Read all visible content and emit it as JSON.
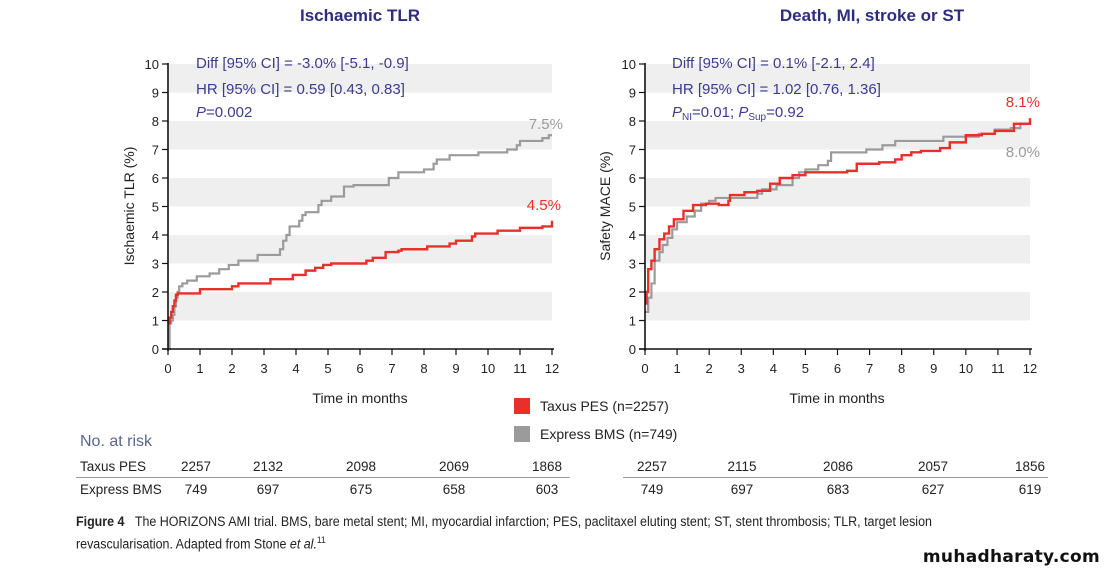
{
  "chart_data": [
    {
      "type": "line",
      "step": true,
      "title": "Ischaemic TLR",
      "xlabel": "Time in months",
      "ylabel": "Ischaemic TLR (%)",
      "xlim": [
        0,
        12
      ],
      "ylim": [
        0,
        10
      ],
      "xticks": [
        "0",
        "1",
        "2",
        "3",
        "4",
        "5",
        "6",
        "7",
        "8",
        "9",
        "10",
        "11",
        "12"
      ],
      "yticks": [
        "0",
        "1",
        "2",
        "3",
        "4",
        "5",
        "6",
        "7",
        "8",
        "9",
        "10"
      ],
      "grid": "alternating horizontal bands",
      "annotations": {
        "line1": "Diff [95% CI] = -3.0% [-5.1, -0.9]",
        "line2": "HR [95% CI] = 0.59 [0.43, 0.83]",
        "p_label": "P",
        "p_value": "=0.002"
      },
      "end_labels": {
        "gray": "7.5%",
        "red": "4.5%"
      },
      "series": [
        {
          "name": "Taxus PES (n=2257)",
          "color": "#e8302a",
          "points": [
            [
              0,
              0.9
            ],
            [
              0.05,
              1.1
            ],
            [
              0.1,
              1.3
            ],
            [
              0.15,
              1.5
            ],
            [
              0.2,
              1.7
            ],
            [
              0.25,
              1.9
            ],
            [
              0.3,
              1.95
            ],
            [
              1.0,
              2.1
            ],
            [
              2.0,
              2.2
            ],
            [
              2.2,
              2.3
            ],
            [
              3.2,
              2.45
            ],
            [
              3.9,
              2.6
            ],
            [
              4.3,
              2.75
            ],
            [
              4.6,
              2.85
            ],
            [
              4.85,
              2.95
            ],
            [
              5.1,
              3.0
            ],
            [
              6.2,
              3.1
            ],
            [
              6.4,
              3.2
            ],
            [
              6.8,
              3.4
            ],
            [
              7.2,
              3.45
            ],
            [
              7.3,
              3.5
            ],
            [
              8.1,
              3.6
            ],
            [
              8.8,
              3.7
            ],
            [
              9.0,
              3.8
            ],
            [
              9.5,
              3.95
            ],
            [
              9.6,
              4.05
            ],
            [
              10.3,
              4.15
            ],
            [
              11.0,
              4.25
            ],
            [
              11.7,
              4.3
            ],
            [
              12.0,
              4.5
            ]
          ]
        },
        {
          "name": "Express BMS (n=749)",
          "color": "#9b9b9b",
          "points": [
            [
              0,
              0
            ],
            [
              0.05,
              0.9
            ],
            [
              0.1,
              1.0
            ],
            [
              0.15,
              1.2
            ],
            [
              0.2,
              1.5
            ],
            [
              0.25,
              1.8
            ],
            [
              0.3,
              2.0
            ],
            [
              0.35,
              2.2
            ],
            [
              0.45,
              2.3
            ],
            [
              0.6,
              2.4
            ],
            [
              0.9,
              2.55
            ],
            [
              1.3,
              2.65
            ],
            [
              1.6,
              2.8
            ],
            [
              1.9,
              2.95
            ],
            [
              2.2,
              3.1
            ],
            [
              2.8,
              3.3
            ],
            [
              3.5,
              3.5
            ],
            [
              3.6,
              3.8
            ],
            [
              3.7,
              4.0
            ],
            [
              3.8,
              4.3
            ],
            [
              4.1,
              4.5
            ],
            [
              4.2,
              4.7
            ],
            [
              4.3,
              4.8
            ],
            [
              4.7,
              5.05
            ],
            [
              4.8,
              5.2
            ],
            [
              5.1,
              5.35
            ],
            [
              5.5,
              5.7
            ],
            [
              5.8,
              5.75
            ],
            [
              6.9,
              6.0
            ],
            [
              7.2,
              6.2
            ],
            [
              8.0,
              6.3
            ],
            [
              8.3,
              6.5
            ],
            [
              8.4,
              6.65
            ],
            [
              8.8,
              6.8
            ],
            [
              9.7,
              6.9
            ],
            [
              10.6,
              7.0
            ],
            [
              10.9,
              7.15
            ],
            [
              11.0,
              7.3
            ],
            [
              11.7,
              7.4
            ],
            [
              11.9,
              7.5
            ],
            [
              12.0,
              7.5
            ]
          ]
        }
      ],
      "at_risk": {
        "Taxus PES": [
          "2257",
          "2132",
          "2098",
          "2069",
          "1868"
        ],
        "Express BMS": [
          "749",
          "697",
          "675",
          "658",
          "603"
        ]
      }
    },
    {
      "type": "line",
      "step": true,
      "title": "Death, MI, stroke or ST",
      "xlabel": "Time in months",
      "ylabel": "Safety MACE (%)",
      "xlim": [
        0,
        12
      ],
      "ylim": [
        0,
        10
      ],
      "xticks": [
        "0",
        "1",
        "2",
        "3",
        "4",
        "5",
        "6",
        "7",
        "8",
        "9",
        "10",
        "11",
        "12"
      ],
      "yticks": [
        "0",
        "1",
        "2",
        "3",
        "4",
        "5",
        "6",
        "7",
        "8",
        "9",
        "10"
      ],
      "grid": "alternating horizontal bands",
      "annotations": {
        "line1": "Diff [95% CI] = 0.1% [-2.1, 2.4]",
        "line2": "HR [95% CI] = 1.02 [0.76, 1.36]",
        "p_ni_label": "P",
        "p_ni_sub": "NI",
        "p_ni_value": "=0.01; ",
        "p_sup_label": "P",
        "p_sup_sub": "Sup",
        "p_sup_value": "=0.92"
      },
      "end_labels": {
        "red": "8.1%",
        "gray": "8.0%"
      },
      "series": [
        {
          "name": "Taxus PES (n=2257)",
          "color": "#e8302a",
          "points": [
            [
              0,
              1.6
            ],
            [
              0.05,
              2.0
            ],
            [
              0.1,
              2.8
            ],
            [
              0.2,
              3.1
            ],
            [
              0.3,
              3.5
            ],
            [
              0.45,
              3.85
            ],
            [
              0.6,
              4.05
            ],
            [
              0.75,
              4.3
            ],
            [
              0.9,
              4.55
            ],
            [
              1.2,
              4.85
            ],
            [
              1.5,
              5.05
            ],
            [
              1.9,
              5.1
            ],
            [
              2.3,
              5.05
            ],
            [
              2.6,
              5.2
            ],
            [
              2.65,
              5.4
            ],
            [
              3.1,
              5.5
            ],
            [
              3.5,
              5.55
            ],
            [
              3.9,
              5.8
            ],
            [
              4.2,
              6.0
            ],
            [
              4.6,
              6.1
            ],
            [
              5.0,
              6.2
            ],
            [
              5.8,
              6.2
            ],
            [
              6.3,
              6.25
            ],
            [
              6.6,
              6.5
            ],
            [
              7.3,
              6.55
            ],
            [
              7.8,
              6.65
            ],
            [
              8.0,
              6.8
            ],
            [
              8.3,
              6.9
            ],
            [
              8.6,
              6.95
            ],
            [
              9.2,
              7.05
            ],
            [
              9.5,
              7.25
            ],
            [
              10.0,
              7.5
            ],
            [
              10.5,
              7.55
            ],
            [
              10.9,
              7.65
            ],
            [
              11.5,
              7.9
            ],
            [
              12.0,
              8.1
            ]
          ]
        },
        {
          "name": "Express BMS (n=749)",
          "color": "#9b9b9b",
          "points": [
            [
              0,
              1.3
            ],
            [
              0.1,
              1.8
            ],
            [
              0.2,
              2.3
            ],
            [
              0.3,
              3.1
            ],
            [
              0.45,
              3.4
            ],
            [
              0.55,
              3.65
            ],
            [
              0.7,
              3.9
            ],
            [
              0.85,
              4.2
            ],
            [
              1.0,
              4.45
            ],
            [
              1.3,
              4.65
            ],
            [
              1.55,
              4.85
            ],
            [
              1.75,
              5.1
            ],
            [
              2.0,
              5.2
            ],
            [
              2.2,
              5.3
            ],
            [
              3.5,
              5.45
            ],
            [
              3.65,
              5.6
            ],
            [
              4.1,
              5.75
            ],
            [
              4.6,
              6.0
            ],
            [
              4.8,
              6.2
            ],
            [
              5.0,
              6.3
            ],
            [
              5.4,
              6.45
            ],
            [
              5.7,
              6.6
            ],
            [
              5.8,
              6.9
            ],
            [
              6.9,
              7.0
            ],
            [
              7.4,
              7.15
            ],
            [
              7.8,
              7.3
            ],
            [
              9.3,
              7.45
            ],
            [
              10.4,
              7.55
            ],
            [
              10.9,
              7.7
            ],
            [
              11.4,
              7.75
            ],
            [
              11.7,
              7.9
            ],
            [
              12.0,
              8.0
            ]
          ]
        }
      ],
      "at_risk": {
        "Taxus PES": [
          "2257",
          "2115",
          "2086",
          "2057",
          "1856"
        ],
        "Express BMS": [
          "749",
          "697",
          "683",
          "627",
          "619"
        ]
      }
    }
  ],
  "legend": {
    "items": [
      {
        "label": "Taxus PES (n=2257)",
        "color": "#e8302a"
      },
      {
        "label": "Express BMS (n=749)",
        "color": "#9b9b9b"
      }
    ]
  },
  "at_risk_table": {
    "title": "No. at risk",
    "row_labels": [
      "Taxus PES",
      "Express BMS"
    ]
  },
  "caption": {
    "figure_label": "Figure 4",
    "text_part1": "The HORIZONS AMI trial. BMS, bare metal stent; MI, myocardial infarction; PES, paclitaxel eluting stent; ST, stent thrombosis; TLR, target lesion revascularisation. Adapted from Stone ",
    "et_al": "et al.",
    "superscript": "11"
  },
  "watermark": "muhadharaty.com",
  "colors": {
    "title": "#2e2d7f",
    "annotation": "#3b3c8c",
    "red": "#e8302a",
    "gray": "#9b9b9b",
    "band": "#efefef"
  }
}
